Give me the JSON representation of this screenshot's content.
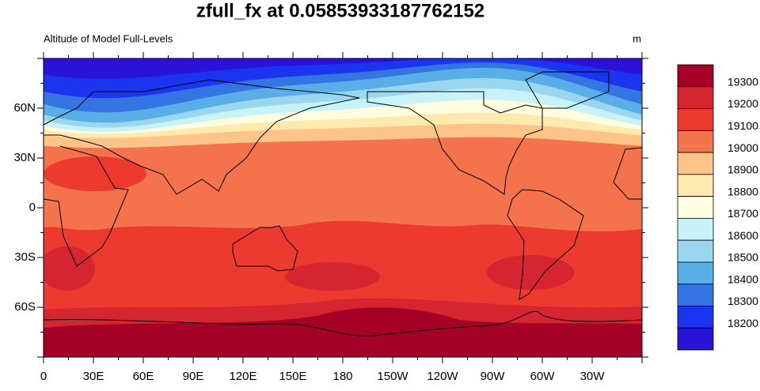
{
  "title": "zfull_fx at 0.05853933187762152",
  "left_label": "Altitude of Model Full-Levels",
  "right_label": "m",
  "x_axis": {
    "ticks": [
      "0",
      "30E",
      "60E",
      "90E",
      "120E",
      "150E",
      "180",
      "150W",
      "120W",
      "90W",
      "60W",
      "30W"
    ]
  },
  "y_axis": {
    "ticks": [
      "60N",
      "30N",
      "0",
      "30S",
      "60S"
    ]
  },
  "colorbar": {
    "levels": [
      19300,
      19200,
      19100,
      19000,
      18900,
      18800,
      18700,
      18600,
      18500,
      18400,
      18300,
      18200
    ],
    "colors": [
      "#a50026",
      "#d42531",
      "#ec3a30",
      "#f4724c",
      "#fdc48a",
      "#fee9ae",
      "#fefde0",
      "#c6f2f8",
      "#9ad6f0",
      "#5aaee8",
      "#3475e3",
      "#1b34ef",
      "#2a12d6"
    ]
  }
}
